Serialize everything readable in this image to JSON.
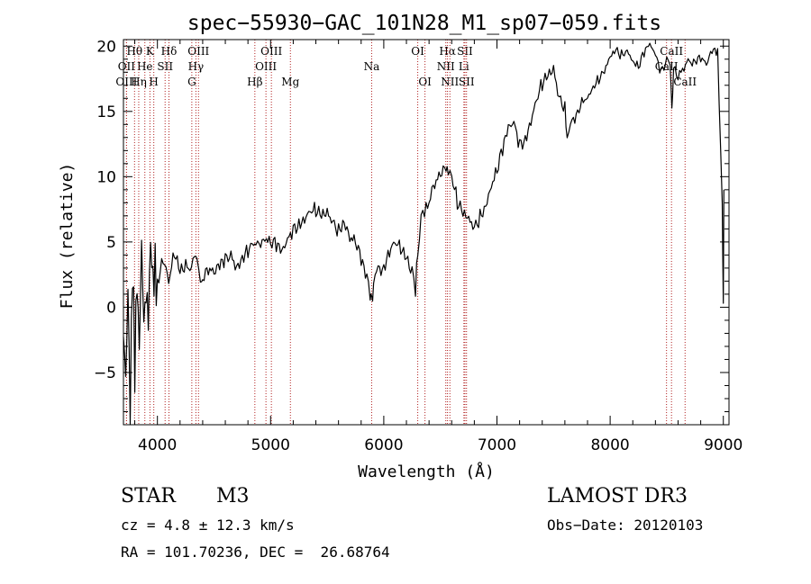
{
  "chart_data": {
    "type": "line",
    "title": "spec−55930−GAC_101N28_M1_sp07−059.fits",
    "xlabel": "Wavelength (Å)",
    "ylabel": "Flux (relative)",
    "xlim": [
      3700,
      9050
    ],
    "ylim": [
      -9,
      20.5
    ],
    "x_ticks": [
      4000,
      5000,
      6000,
      7000,
      8000,
      9000
    ],
    "x_tick_labels": [
      "4000",
      "5000",
      "6000",
      "7000",
      "8000",
      "9000"
    ],
    "y_ticks": [
      -5,
      0,
      5,
      10,
      15,
      20
    ],
    "y_tick_labels": [
      "−5",
      "0",
      "5",
      "10",
      "15",
      "20"
    ],
    "grid": false,
    "series": [
      {
        "name": "flux",
        "x": [
          3700,
          3720,
          3740,
          3760,
          3780,
          3800,
          3820,
          3840,
          3860,
          3880,
          3900,
          3920,
          3940,
          3960,
          3980,
          4000,
          4050,
          4100,
          4150,
          4200,
          4250,
          4300,
          4330,
          4350,
          4380,
          4400,
          4450,
          4500,
          4550,
          4600,
          4650,
          4700,
          4750,
          4800,
          4850,
          4870,
          4900,
          4950,
          5000,
          5050,
          5100,
          5150,
          5200,
          5250,
          5300,
          5350,
          5400,
          5450,
          5500,
          5550,
          5600,
          5650,
          5700,
          5750,
          5800,
          5850,
          5880,
          5893,
          5910,
          5950,
          6000,
          6050,
          6100,
          6150,
          6200,
          6250,
          6280,
          6300,
          6330,
          6360,
          6400,
          6450,
          6500,
          6550,
          6570,
          6600,
          6650,
          6700,
          6750,
          6800,
          6850,
          6900,
          6950,
          7000,
          7050,
          7100,
          7150,
          7200,
          7250,
          7300,
          7350,
          7400,
          7450,
          7500,
          7550,
          7600,
          7620,
          7650,
          7700,
          7750,
          7800,
          7850,
          7900,
          7950,
          8000,
          8050,
          8100,
          8150,
          8200,
          8250,
          8300,
          8350,
          8400,
          8450,
          8500,
          8530,
          8545,
          8560,
          8600,
          8640,
          8665,
          8700,
          8750,
          8800,
          8850,
          8900,
          8950,
          8990,
          9000,
          9005
        ],
        "y": [
          -3,
          -6,
          2,
          -7,
          4,
          -5,
          1,
          -4,
          5,
          0,
          2,
          -1,
          4,
          1,
          3,
          2,
          4,
          2,
          4,
          2.5,
          3,
          3,
          4,
          3.5,
          2,
          2.5,
          3,
          2.5,
          3,
          3.5,
          4,
          3.2,
          4,
          4.5,
          4.8,
          4.5,
          5,
          5.5,
          5,
          4.7,
          4,
          5,
          6,
          6.5,
          7,
          7.5,
          7.3,
          6.8,
          7,
          6.5,
          6,
          6.8,
          5.5,
          5,
          3.5,
          2,
          1,
          0.2,
          2,
          3,
          3.2,
          4.5,
          5,
          4.3,
          3.5,
          2.5,
          1.5,
          4.5,
          6.5,
          7.5,
          8.5,
          9.5,
          10,
          10.5,
          10,
          10.2,
          8,
          7,
          6.5,
          6,
          7,
          8,
          9.5,
          10.5,
          12,
          13.5,
          14,
          12.5,
          13,
          14.5,
          16,
          17,
          17.5,
          18,
          16,
          15.5,
          13,
          14,
          14.5,
          15.8,
          16.2,
          17,
          17.5,
          18,
          19,
          19.6,
          19.3,
          19.8,
          19,
          18.5,
          19.5,
          20,
          19.2,
          18,
          19,
          18.8,
          15,
          18.3,
          17.5,
          18.2,
          18.5,
          18.8,
          19,
          19.2,
          18.5,
          19.5,
          19.5,
          8,
          0.5,
          9
        ]
      }
    ],
    "spectral_lines": [
      {
        "label": "Hθ",
        "x": 3798,
        "row": 1
      },
      {
        "label": "OII",
        "x": 3727,
        "row": 2
      },
      {
        "label": "OIII",
        "x": 3727,
        "row": 3
      },
      {
        "label": "K",
        "x": 3934,
        "row": 1
      },
      {
        "label": "He",
        "x": 3889,
        "row": 2
      },
      {
        "label": "Hη",
        "x": 3835,
        "row": 3
      },
      {
        "label": "Hδ",
        "x": 4102,
        "row": 1
      },
      {
        "label": "SII",
        "x": 4068,
        "row": 2
      },
      {
        "label": "H",
        "x": 3968,
        "row": 3
      },
      {
        "label": "OIII",
        "x": 4363,
        "row": 1
      },
      {
        "label": "Hγ",
        "x": 4340,
        "row": 2
      },
      {
        "label": "G",
        "x": 4304,
        "row": 3
      },
      {
        "label": "OIII",
        "x": 5007,
        "row": 1
      },
      {
        "label": "OIII",
        "x": 4959,
        "row": 2
      },
      {
        "label": "Hβ",
        "x": 4861,
        "row": 3
      },
      {
        "label": "Mg",
        "x": 5175,
        "row": 3
      },
      {
        "label": "Na",
        "x": 5893,
        "row": 2
      },
      {
        "label": "OI",
        "x": 6300,
        "row": 1
      },
      {
        "label": "OI",
        "x": 6364,
        "row": 3
      },
      {
        "label": "Hα",
        "x": 6563,
        "row": 1
      },
      {
        "label": "SII",
        "x": 6717,
        "row": 1
      },
      {
        "label": "NII",
        "x": 6548,
        "row": 2
      },
      {
        "label": "Li",
        "x": 6708,
        "row": 2
      },
      {
        "label": "NII",
        "x": 6584,
        "row": 3
      },
      {
        "label": "SII",
        "x": 6731,
        "row": 3
      },
      {
        "label": "CaII",
        "x": 8542,
        "row": 1
      },
      {
        "label": "CaII",
        "x": 8498,
        "row": 2
      },
      {
        "label": "CaII",
        "x": 8662,
        "row": 3
      }
    ]
  },
  "info": {
    "class": "STAR",
    "subclass": "M3",
    "survey": "LAMOST DR3",
    "cz": "cz = 4.8 ± 12.3 km/s",
    "obs_date": "Obs−Date: 20120103",
    "coords": "RA = 101.70236, DEC =  26.68764"
  },
  "colors": {
    "line_marker": "#b22222",
    "spectrum": "#000000"
  }
}
